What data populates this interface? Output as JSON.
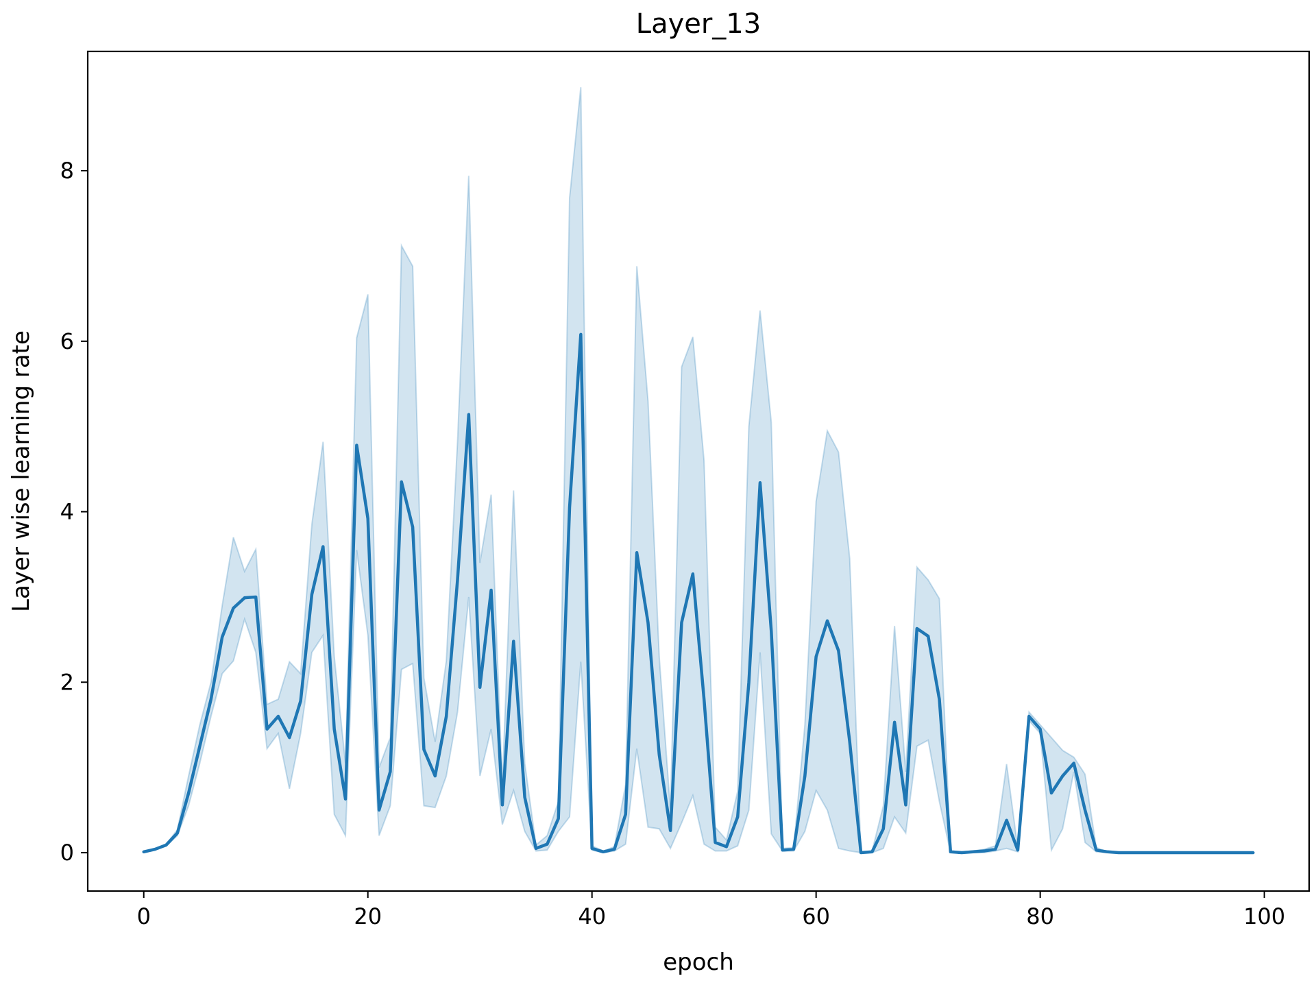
{
  "chart_data": {
    "type": "line",
    "title": "Layer_13",
    "xlabel": "epoch",
    "ylabel": "Layer wise learning rate",
    "xlim": [
      -5,
      104
    ],
    "ylim": [
      -0.45,
      9.4
    ],
    "xticks": [
      0,
      20,
      40,
      60,
      80,
      100
    ],
    "yticks": [
      0,
      2,
      4,
      6,
      8
    ],
    "grid": false,
    "legend": "none",
    "colors": {
      "line": "#1f77b4",
      "band": "#1f77b4"
    },
    "series": [
      {
        "x": [
          0,
          1,
          2,
          3,
          4,
          5,
          6,
          7,
          8,
          9,
          10,
          11,
          12,
          13,
          14,
          15,
          16,
          17,
          18,
          19,
          20,
          21,
          22,
          23,
          24,
          25,
          26,
          27,
          28,
          29,
          30,
          31,
          32,
          33,
          34,
          35,
          36,
          37,
          38,
          39,
          40,
          41,
          42,
          43,
          44,
          45,
          46,
          47,
          48,
          49,
          50,
          51,
          52,
          53,
          54,
          55,
          56,
          57,
          58,
          59,
          60,
          61,
          62,
          63,
          64,
          65,
          66,
          67,
          68,
          69,
          70,
          71,
          72,
          73,
          74,
          75,
          76,
          77,
          78,
          79,
          80,
          81,
          82,
          83,
          84,
          85,
          86,
          87,
          88,
          89,
          90,
          91,
          92,
          93,
          94,
          95,
          96,
          97,
          98,
          99
        ],
        "values": [
          0.01,
          0.04,
          0.09,
          0.23,
          0.7,
          1.25,
          1.8,
          2.53,
          2.87,
          2.99,
          3.0,
          1.45,
          1.6,
          1.35,
          1.78,
          3.03,
          3.59,
          1.45,
          0.63,
          4.78,
          3.92,
          0.5,
          0.95,
          4.35,
          3.82,
          1.21,
          0.9,
          1.6,
          3.2,
          5.14,
          1.94,
          3.08,
          0.56,
          2.48,
          0.65,
          0.05,
          0.1,
          0.4,
          4.05,
          6.08,
          0.05,
          0.01,
          0.04,
          0.45,
          3.52,
          2.7,
          1.15,
          0.26,
          2.7,
          3.27,
          1.8,
          0.12,
          0.07,
          0.42,
          2.0,
          4.34,
          2.6,
          0.03,
          0.04,
          0.9,
          2.3,
          2.72,
          2.37,
          1.3,
          0.0,
          0.01,
          0.28,
          1.53,
          0.56,
          2.63,
          2.54,
          1.8,
          0.01,
          0.0,
          0.01,
          0.02,
          0.04,
          0.38,
          0.03,
          1.6,
          1.45,
          0.7,
          0.9,
          1.05,
          0.5,
          0.03,
          0.01,
          0.0,
          0.0,
          0.0,
          0.0,
          0.0,
          0.0,
          0.0,
          0.0,
          0.0,
          0.0,
          0.0,
          0.0,
          0.0
        ],
        "ci_low": [
          0.01,
          0.04,
          0.08,
          0.2,
          0.55,
          1.05,
          1.6,
          2.1,
          2.25,
          2.74,
          2.35,
          1.22,
          1.4,
          0.75,
          1.4,
          2.35,
          2.55,
          0.45,
          0.2,
          3.55,
          2.55,
          0.2,
          0.55,
          2.15,
          2.22,
          0.55,
          0.53,
          0.9,
          1.65,
          3.0,
          0.9,
          1.45,
          0.33,
          0.73,
          0.25,
          0.02,
          0.03,
          0.25,
          0.42,
          2.24,
          0.03,
          0.0,
          0.02,
          0.1,
          1.22,
          0.3,
          0.28,
          0.05,
          0.35,
          0.67,
          0.1,
          0.02,
          0.02,
          0.08,
          0.5,
          2.35,
          0.22,
          0.02,
          0.02,
          0.25,
          0.73,
          0.5,
          0.05,
          0.02,
          0.0,
          0.0,
          0.05,
          0.42,
          0.23,
          1.25,
          1.32,
          0.6,
          0.0,
          0.0,
          0.0,
          0.0,
          0.02,
          0.05,
          0.01,
          1.55,
          1.4,
          0.03,
          0.28,
          0.95,
          0.12,
          0.01,
          0.0,
          0.0,
          0.0,
          0.0,
          0.0,
          0.0,
          0.0,
          0.0,
          0.0,
          0.0,
          0.0,
          0.0,
          0.0,
          0.0
        ],
        "ci_high": [
          0.01,
          0.04,
          0.1,
          0.27,
          0.9,
          1.5,
          2.0,
          2.9,
          3.7,
          3.3,
          3.56,
          1.74,
          1.8,
          2.24,
          2.1,
          3.85,
          4.82,
          2.3,
          1.05,
          6.04,
          6.55,
          1.0,
          1.35,
          7.12,
          6.88,
          2.05,
          1.3,
          2.25,
          4.82,
          7.94,
          3.4,
          4.2,
          0.8,
          4.25,
          1.05,
          0.09,
          0.2,
          0.6,
          7.68,
          8.98,
          0.08,
          0.02,
          0.07,
          0.8,
          6.88,
          5.3,
          2.3,
          0.5,
          5.7,
          6.05,
          4.6,
          0.3,
          0.15,
          0.72,
          5.0,
          6.36,
          5.05,
          0.05,
          0.06,
          1.5,
          4.12,
          4.95,
          4.7,
          3.45,
          0.0,
          0.02,
          0.55,
          2.66,
          0.95,
          3.35,
          3.2,
          2.98,
          0.02,
          0.01,
          0.02,
          0.04,
          0.08,
          1.04,
          0.05,
          1.65,
          1.5,
          1.35,
          1.2,
          1.12,
          0.92,
          0.06,
          0.01,
          0.0,
          0.0,
          0.0,
          0.0,
          0.0,
          0.0,
          0.0,
          0.0,
          0.0,
          0.0,
          0.0,
          0.0,
          0.0
        ]
      }
    ]
  }
}
